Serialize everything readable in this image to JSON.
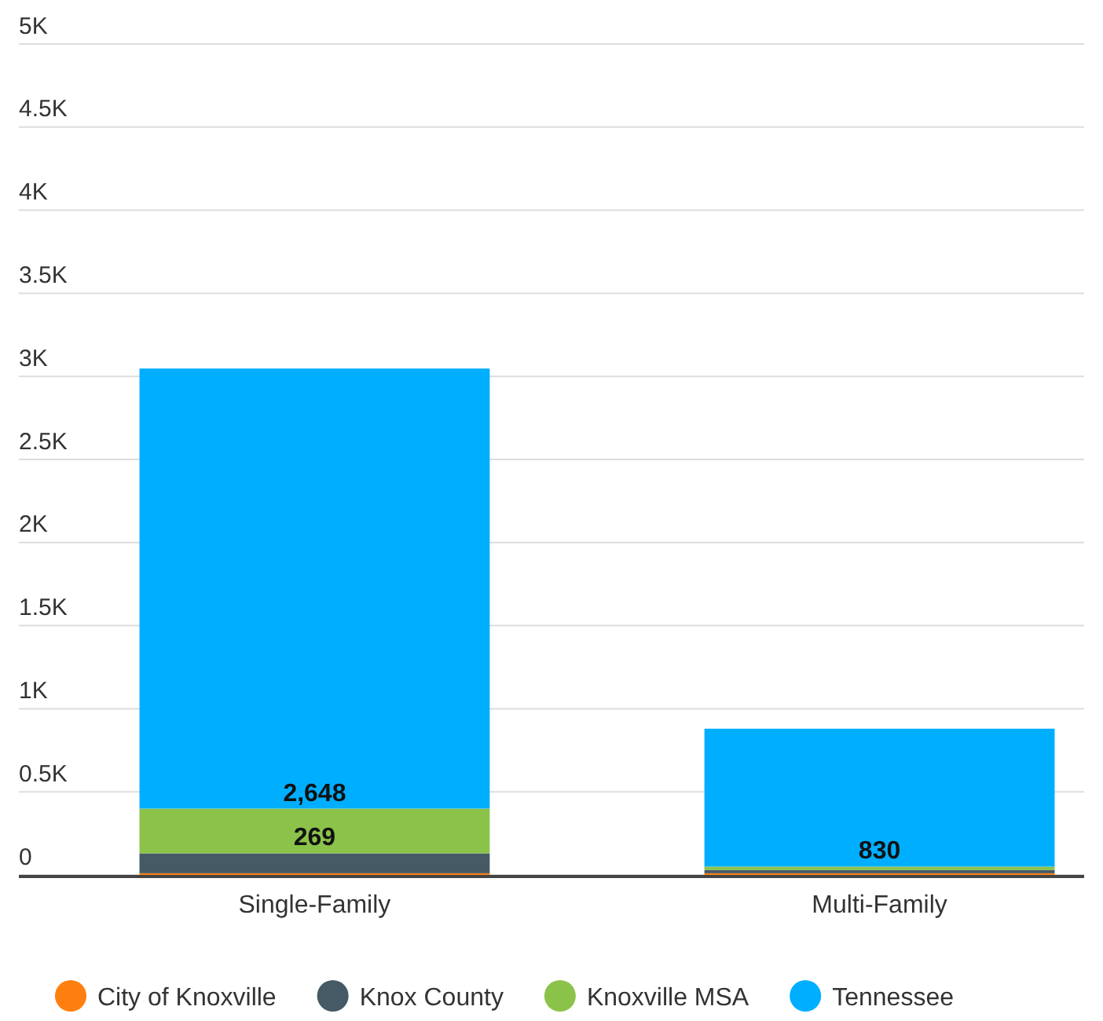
{
  "chart_data": {
    "type": "bar",
    "stacked": true,
    "categories": [
      "Single-Family",
      "Multi-Family"
    ],
    "series": [
      {
        "name": "City of Knoxville",
        "color": "#ff7f0e",
        "values": [
          10,
          10
        ]
      },
      {
        "name": "Knox County",
        "color": "#455a64",
        "values": [
          120,
          20
        ]
      },
      {
        "name": "Knoxville MSA",
        "color": "#8bc34a",
        "values": [
          269,
          20
        ],
        "value_labels": [
          "269",
          null
        ]
      },
      {
        "name": "Tennessee",
        "color": "#00aeff",
        "values": [
          2648,
          830
        ],
        "value_labels": [
          "2,648",
          "830"
        ]
      }
    ],
    "ylim": [
      0,
      5000
    ],
    "yticks": [
      {
        "value": 0,
        "label": "0"
      },
      {
        "value": 500,
        "label": "0.5K"
      },
      {
        "value": 1000,
        "label": "1K"
      },
      {
        "value": 1500,
        "label": "1.5K"
      },
      {
        "value": 2000,
        "label": "2K"
      },
      {
        "value": 2500,
        "label": "2.5K"
      },
      {
        "value": 3000,
        "label": "3K"
      },
      {
        "value": 3500,
        "label": "3.5K"
      },
      {
        "value": 4000,
        "label": "4K"
      },
      {
        "value": 4500,
        "label": "4.5K"
      },
      {
        "value": 5000,
        "label": "5K"
      }
    ],
    "grid": "y",
    "legend": "bottom"
  }
}
